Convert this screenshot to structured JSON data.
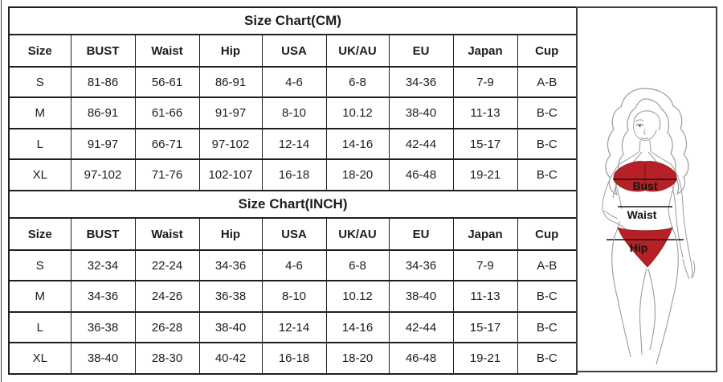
{
  "tables": [
    {
      "title": "Size Chart(CM)",
      "headers": [
        "Size",
        "BUST",
        "Waist",
        "Hip",
        "USA",
        "UK/AU",
        "EU",
        "Japan",
        "Cup"
      ],
      "rows": [
        [
          "S",
          "81-86",
          "56-61",
          "86-91",
          "4-6",
          "6-8",
          "34-36",
          "7-9",
          "A-B"
        ],
        [
          "M",
          "86-91",
          "61-66",
          "91-97",
          "8-10",
          "10.12",
          "38-40",
          "11-13",
          "B-C"
        ],
        [
          "L",
          "91-97",
          "66-71",
          "97-102",
          "12-14",
          "14-16",
          "42-44",
          "15-17",
          "B-C"
        ],
        [
          "XL",
          "97-102",
          "71-76",
          "102-107",
          "16-18",
          "18-20",
          "46-48",
          "19-21",
          "B-C"
        ]
      ]
    },
    {
      "title": "Size Chart(INCH)",
      "headers": [
        "Size",
        "BUST",
        "Waist",
        "Hip",
        "USA",
        "UK/AU",
        "EU",
        "Japan",
        "Cup"
      ],
      "rows": [
        [
          "S",
          "32-34",
          "22-24",
          "34-36",
          "4-6",
          "6-8",
          "34-36",
          "7-9",
          "A-B"
        ],
        [
          "M",
          "34-36",
          "24-26",
          "36-38",
          "8-10",
          "10.12",
          "38-40",
          "11-13",
          "B-C"
        ],
        [
          "L",
          "36-38",
          "26-28",
          "38-40",
          "12-14",
          "14-16",
          "42-44",
          "15-17",
          "B-C"
        ],
        [
          "XL",
          "38-40",
          "28-30",
          "40-42",
          "16-18",
          "18-20",
          "46-48",
          "19-21",
          "B-C"
        ]
      ]
    }
  ],
  "figure": {
    "labels": {
      "bust": "Bust",
      "waist": "Waist",
      "hip": "Hip"
    },
    "colors": {
      "bikini_red": "#b62026",
      "bikini_red_dark": "#941a20",
      "line_art": "#a0a0a0",
      "measure_line": "#141414",
      "label_text": "#141414"
    }
  }
}
